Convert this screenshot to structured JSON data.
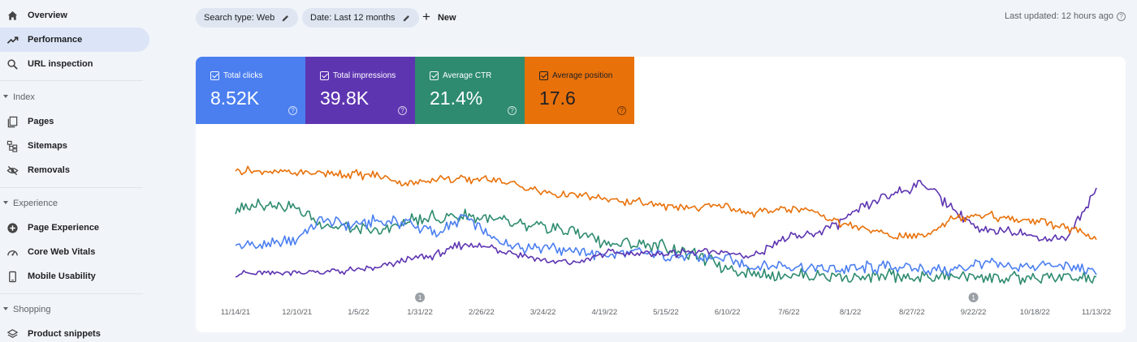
{
  "sidebar": {
    "items": [
      {
        "label": "Overview",
        "icon": "home-icon"
      },
      {
        "label": "Performance",
        "icon": "trending-up-icon"
      },
      {
        "label": "URL inspection",
        "icon": "search-icon"
      }
    ],
    "sections": [
      {
        "label": "Index",
        "items": [
          {
            "label": "Pages"
          },
          {
            "label": "Sitemaps"
          },
          {
            "label": "Removals"
          }
        ]
      },
      {
        "label": "Experience",
        "items": [
          {
            "label": "Page Experience"
          },
          {
            "label": "Core Web Vitals"
          },
          {
            "label": "Mobile Usability"
          }
        ]
      },
      {
        "label": "Shopping",
        "items": [
          {
            "label": "Product snippets"
          }
        ]
      }
    ]
  },
  "toolbar": {
    "search_type": "Search type: Web",
    "date": "Date: Last 12 months",
    "new_label": "New",
    "last_updated": "Last updated: 12 hours ago"
  },
  "metrics": [
    {
      "label": "Total clicks",
      "value": "8.52K",
      "color": "#4b7ff0"
    },
    {
      "label": "Total impressions",
      "value": "39.8K",
      "color": "#5e35b1"
    },
    {
      "label": "Average CTR",
      "value": "21.4%",
      "color": "#2e8b6f"
    },
    {
      "label": "Average position",
      "value": "17.6",
      "color": "#e8710a"
    }
  ],
  "chart_data": {
    "type": "line",
    "x_labels": [
      "11/14/21",
      "12/10/21",
      "1/5/22",
      "1/31/22",
      "2/26/22",
      "3/24/22",
      "4/19/22",
      "5/15/22",
      "6/10/22",
      "7/6/22",
      "8/1/22",
      "8/27/22",
      "9/22/22",
      "10/18/22",
      "11/13/22"
    ],
    "annotations": [
      {
        "x": "1/31/22",
        "label": "1"
      },
      {
        "x": "9/22/22",
        "label": "1"
      }
    ],
    "grid": false,
    "y_axis_shown": false,
    "series": [
      {
        "name": "Total clicks",
        "color": "#4b7ff0",
        "values": [
          0.3,
          0.3,
          0.33,
          0.48,
          0.44,
          0.47,
          0.46,
          0.38,
          0.5,
          0.34,
          0.29,
          0.29,
          0.25,
          0.23,
          0.25,
          0.23,
          0.21,
          0.21,
          0.15,
          0.16,
          0.14,
          0.13,
          0.14,
          0.15,
          0.13,
          0.12,
          0.18,
          0.14,
          0.16,
          0.15,
          0.11
        ]
      },
      {
        "name": "Total impressions",
        "color": "#5e35b1",
        "values": [
          0.1,
          0.1,
          0.11,
          0.11,
          0.12,
          0.14,
          0.2,
          0.23,
          0.31,
          0.28,
          0.23,
          0.18,
          0.18,
          0.25,
          0.24,
          0.24,
          0.25,
          0.25,
          0.22,
          0.34,
          0.37,
          0.45,
          0.58,
          0.67,
          0.74,
          0.56,
          0.39,
          0.41,
          0.35,
          0.35,
          0.7
        ]
      },
      {
        "name": "Average CTR",
        "color": "#2e8b6f",
        "values": [
          0.54,
          0.6,
          0.57,
          0.45,
          0.42,
          0.39,
          0.47,
          0.49,
          0.51,
          0.48,
          0.43,
          0.42,
          0.39,
          0.31,
          0.31,
          0.29,
          0.23,
          0.15,
          0.1,
          0.09,
          0.09,
          0.08,
          0.07,
          0.08,
          0.07,
          0.08,
          0.08,
          0.06,
          0.07,
          0.07,
          0.06
        ]
      },
      {
        "name": "Average position",
        "color": "#e8710a",
        "values": [
          0.83,
          0.82,
          0.81,
          0.81,
          0.8,
          0.79,
          0.73,
          0.77,
          0.76,
          0.77,
          0.71,
          0.66,
          0.65,
          0.62,
          0.6,
          0.58,
          0.56,
          0.58,
          0.52,
          0.56,
          0.55,
          0.46,
          0.41,
          0.36,
          0.37,
          0.49,
          0.52,
          0.48,
          0.47,
          0.42,
          0.34
        ]
      }
    ]
  }
}
